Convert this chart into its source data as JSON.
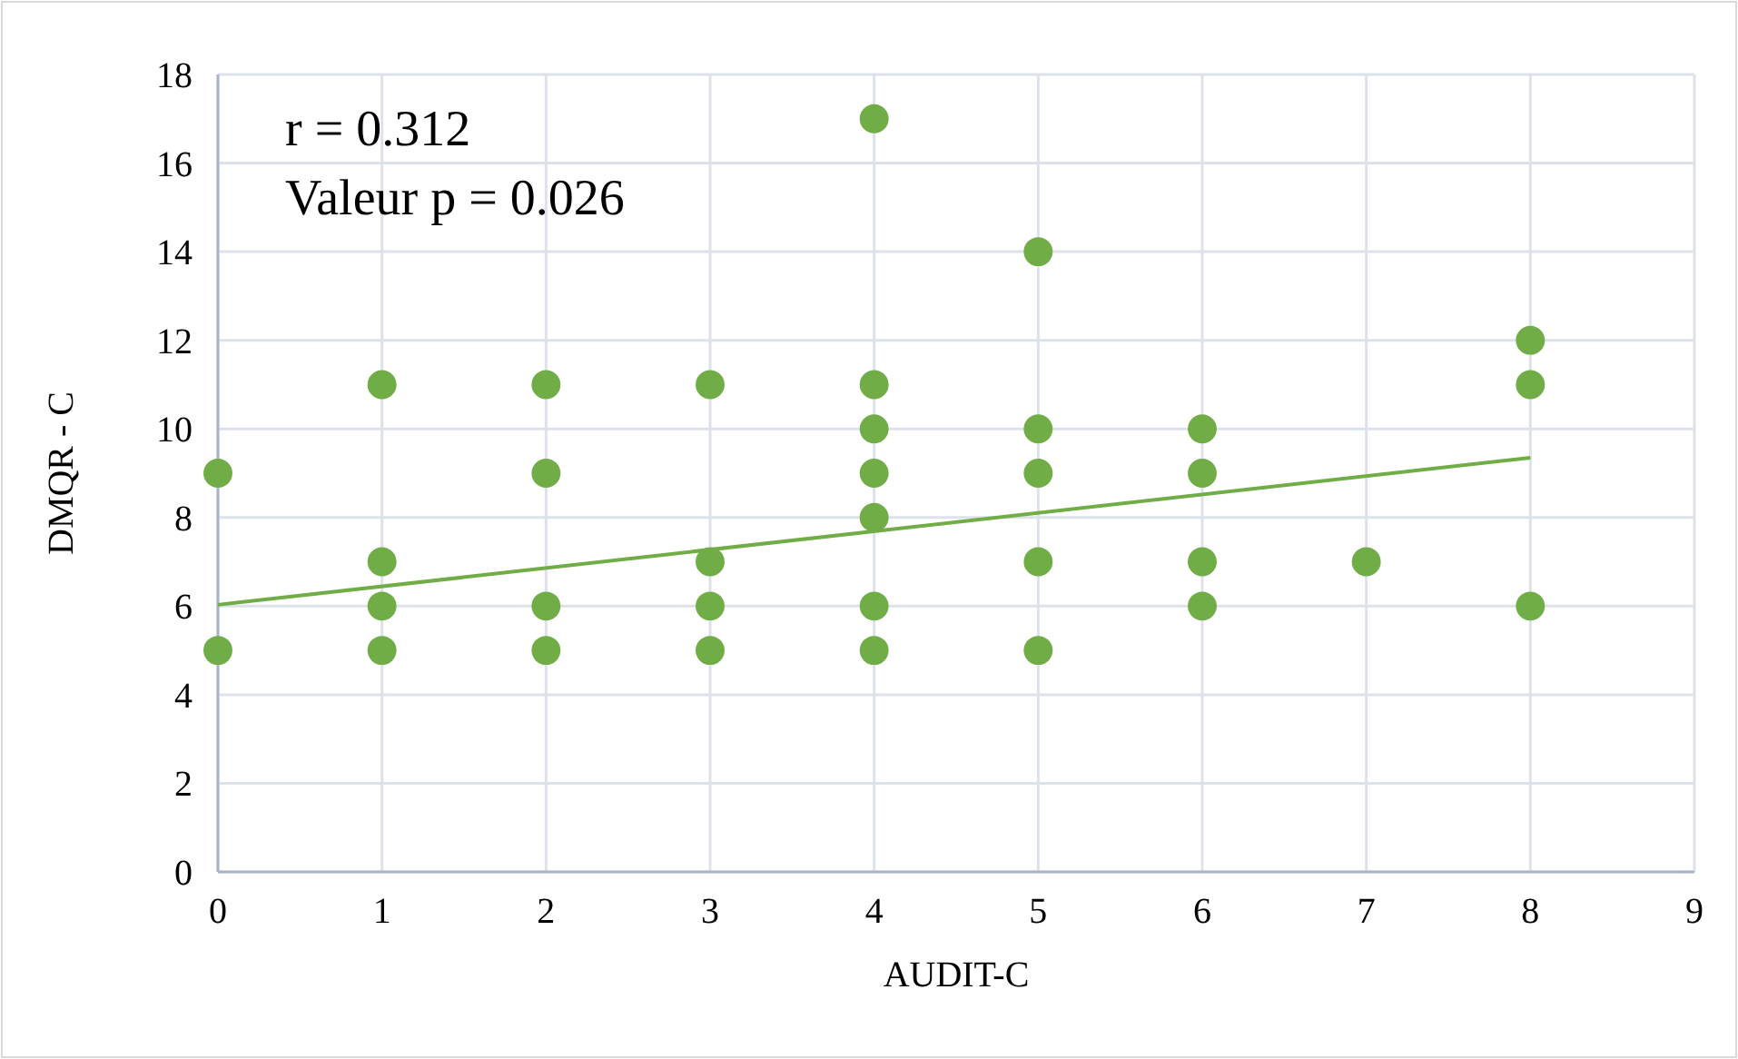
{
  "chart_data": {
    "type": "scatter",
    "xlabel": "AUDIT-C",
    "ylabel": "DMQR - C",
    "annotations": [
      "r = 0.312",
      "Valeur p = 0.026"
    ],
    "xlim": [
      0,
      9
    ],
    "xticks": [
      0,
      1,
      2,
      3,
      4,
      5,
      6,
      7,
      8,
      9
    ],
    "ylim": [
      0,
      18
    ],
    "yticks": [
      0,
      2,
      4,
      6,
      8,
      10,
      12,
      14,
      16,
      18
    ],
    "grid": true,
    "series": [
      {
        "marker": "circle",
        "color": "#70ad47",
        "x": [
          0,
          0,
          1,
          1,
          1,
          1,
          2,
          2,
          2,
          2,
          3,
          3,
          3,
          3,
          4,
          4,
          4,
          4,
          4,
          4,
          4,
          5,
          5,
          5,
          5,
          5,
          6,
          6,
          6,
          6,
          7,
          8,
          8,
          8
        ],
        "values": [
          9,
          5,
          11,
          7,
          6,
          5,
          11,
          9,
          6,
          5,
          11,
          7,
          6,
          5,
          17,
          11,
          10,
          9,
          8,
          6,
          5,
          14,
          10,
          9,
          7,
          5,
          10,
          9,
          7,
          6,
          7,
          12,
          11,
          6
        ]
      },
      {
        "type": "line",
        "color": "#70ad47",
        "x": [
          0,
          8
        ],
        "values": [
          6.03,
          9.35
        ]
      }
    ]
  }
}
